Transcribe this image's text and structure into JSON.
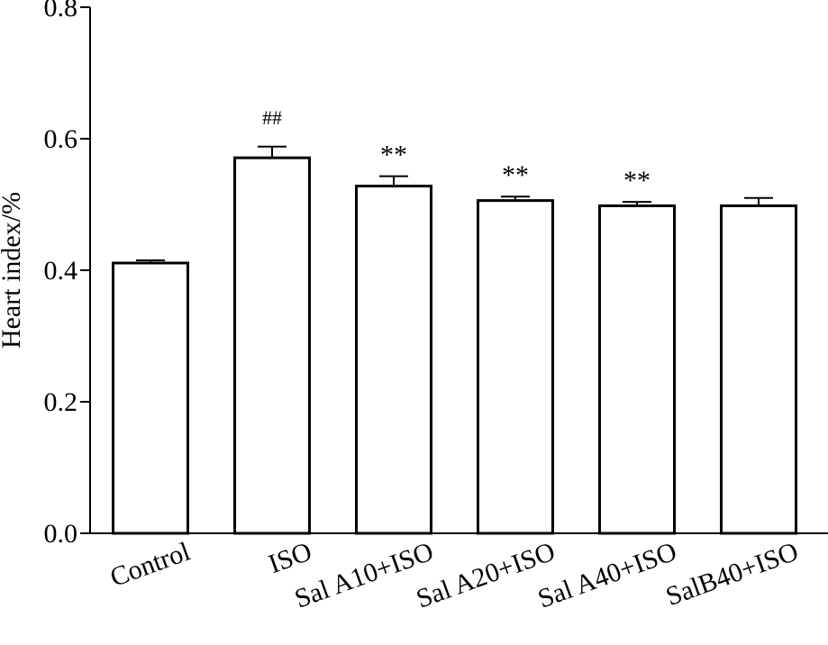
{
  "chart_data": {
    "type": "bar",
    "title": "",
    "xlabel": "",
    "ylabel": "Heart index/%",
    "ylim": [
      0,
      0.8
    ],
    "yticks": [
      "0.0",
      "0.2",
      "0.4",
      "0.6",
      "0.8"
    ],
    "grid": false,
    "categories": [
      "Control",
      "ISO",
      "Sal A10+ISO",
      "Sal A20+ISO",
      "Sal A40+ISO",
      "SalB40+ISO"
    ],
    "values": [
      0.411,
      0.571,
      0.528,
      0.506,
      0.498,
      0.498
    ],
    "errors": [
      0.004,
      0.017,
      0.015,
      0.006,
      0.006,
      0.012
    ],
    "annotations": [
      "",
      "##",
      "**",
      "**",
      "**",
      ""
    ],
    "bar_fill": "#ffffff",
    "bar_stroke": "#000000"
  }
}
